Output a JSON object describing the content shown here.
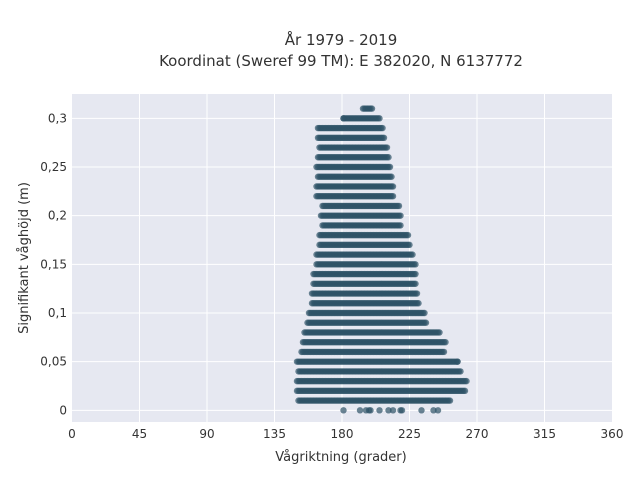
{
  "chart_data": {
    "type": "scatter",
    "title_line1": "År 1979 - 2019",
    "title_line2": "Koordinat (Sweref 99 TM): E 382020, N 6137772",
    "xlabel": "Vågriktning (grader)",
    "ylabel": "Signifikant våghöjd (m)",
    "xlim": [
      0,
      360
    ],
    "ylim": [
      -0.012,
      0.325
    ],
    "x_ticks": [
      0,
      45,
      90,
      135,
      180,
      225,
      270,
      315,
      360
    ],
    "x_tick_labels": [
      "0",
      "45",
      "90",
      "135",
      "180",
      "225",
      "270",
      "315",
      "360"
    ],
    "y_ticks": [
      0,
      0.05,
      0.1,
      0.15,
      0.2,
      0.25,
      0.3
    ],
    "y_tick_labels": [
      "0",
      "0,05",
      "0,1",
      "0,15",
      "0,2",
      "0,25",
      "0,3"
    ],
    "grid": true,
    "marker_color": "#2e5366",
    "background_color": "#e6e8f1",
    "series": [
      {
        "row_y_step": 0.01,
        "x_step": 1,
        "rows": [
          {
            "y": 0.31,
            "x_min": 194,
            "x_max": 200
          },
          {
            "y": 0.3,
            "x_min": 181,
            "x_max": 205
          },
          {
            "y": 0.29,
            "x_min": 164,
            "x_max": 207
          },
          {
            "y": 0.28,
            "x_min": 164,
            "x_max": 208
          },
          {
            "y": 0.27,
            "x_min": 165,
            "x_max": 210
          },
          {
            "y": 0.26,
            "x_min": 164,
            "x_max": 211
          },
          {
            "y": 0.25,
            "x_min": 163,
            "x_max": 212
          },
          {
            "y": 0.24,
            "x_min": 164,
            "x_max": 213
          },
          {
            "y": 0.23,
            "x_min": 163,
            "x_max": 214
          },
          {
            "y": 0.22,
            "x_min": 163,
            "x_max": 214
          },
          {
            "y": 0.21,
            "x_min": 167,
            "x_max": 218
          },
          {
            "y": 0.2,
            "x_min": 166,
            "x_max": 219
          },
          {
            "y": 0.19,
            "x_min": 167,
            "x_max": 219
          },
          {
            "y": 0.18,
            "x_min": 165,
            "x_max": 224
          },
          {
            "y": 0.17,
            "x_min": 165,
            "x_max": 225
          },
          {
            "y": 0.16,
            "x_min": 163,
            "x_max": 227
          },
          {
            "y": 0.15,
            "x_min": 163,
            "x_max": 229
          },
          {
            "y": 0.14,
            "x_min": 161,
            "x_max": 229
          },
          {
            "y": 0.13,
            "x_min": 161,
            "x_max": 229
          },
          {
            "y": 0.12,
            "x_min": 160,
            "x_max": 230
          },
          {
            "y": 0.11,
            "x_min": 160,
            "x_max": 231
          },
          {
            "y": 0.1,
            "x_min": 158,
            "x_max": 235
          },
          {
            "y": 0.09,
            "x_min": 157,
            "x_max": 236
          },
          {
            "y": 0.08,
            "x_min": 155,
            "x_max": 245
          },
          {
            "y": 0.07,
            "x_min": 154,
            "x_max": 248
          },
          {
            "y": 0.06,
            "x_min": 153,
            "x_max": 248
          },
          {
            "y": 0.05,
            "x_min": 150,
            "x_max": 257
          },
          {
            "y": 0.04,
            "x_min": 151,
            "x_max": 259
          },
          {
            "y": 0.03,
            "x_min": 150,
            "x_max": 263
          },
          {
            "y": 0.02,
            "x_min": 150,
            "x_max": 262
          },
          {
            "y": 0.01,
            "x_min": 151,
            "x_max": 252
          }
        ],
        "isolated_points": [
          {
            "x": 181,
            "y": 0.0
          },
          {
            "x": 192,
            "y": 0.0
          },
          {
            "x": 196,
            "y": 0.0
          },
          {
            "x": 199,
            "y": 0.0
          },
          {
            "x": 205,
            "y": 0.0
          },
          {
            "x": 211,
            "y": 0.0
          },
          {
            "x": 214,
            "y": 0.0
          },
          {
            "x": 219,
            "y": 0.0
          },
          {
            "x": 220,
            "y": 0.0
          },
          {
            "x": 233,
            "y": 0.0
          },
          {
            "x": 241,
            "y": 0.0
          },
          {
            "x": 244,
            "y": 0.0
          },
          {
            "x": 198,
            "y": 0.0
          },
          {
            "x": 181,
            "y": 0.3
          },
          {
            "x": 249,
            "y": 0.07
          },
          {
            "x": 257,
            "y": 0.05
          }
        ]
      }
    ]
  }
}
